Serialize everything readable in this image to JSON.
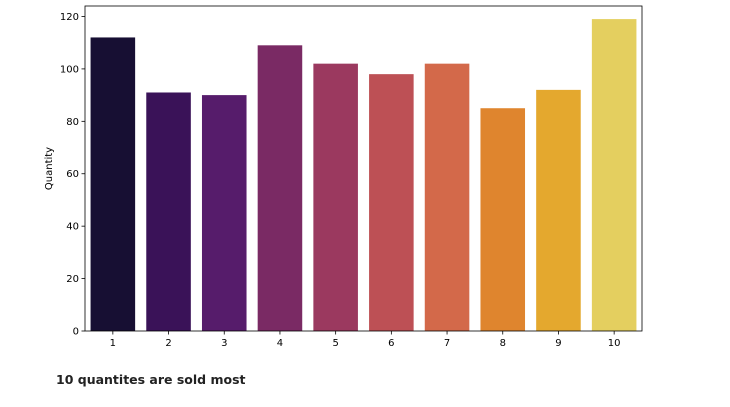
{
  "chart_data": {
    "type": "bar",
    "categories": [
      "1",
      "2",
      "3",
      "4",
      "5",
      "6",
      "7",
      "8",
      "9",
      "10"
    ],
    "values": [
      112,
      91,
      90,
      109,
      102,
      98,
      102,
      85,
      92,
      119
    ],
    "colors": [
      "#170f33",
      "#3a1258",
      "#561c6b",
      "#7a2a64",
      "#9b395f",
      "#bd5055",
      "#d3694a",
      "#df852e",
      "#e4a82e",
      "#e4cf5f"
    ],
    "title": "",
    "xlabel": "",
    "ylabel": "Quantity",
    "ylim": [
      0,
      124
    ],
    "yticks": [
      0,
      20,
      40,
      60,
      80,
      100,
      120
    ],
    "grid": false
  },
  "caption": "10 quantites are sold most"
}
